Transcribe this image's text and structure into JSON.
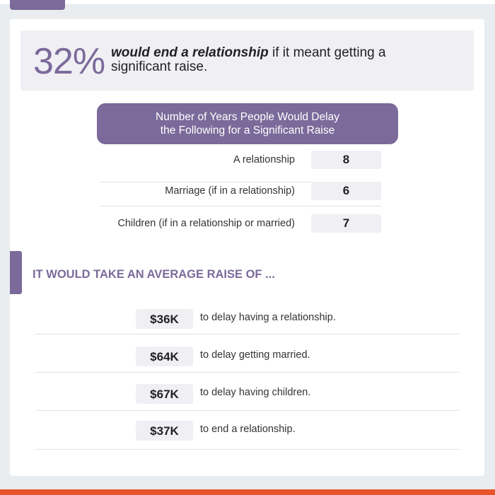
{
  "stat": {
    "percent": "32%",
    "bold_text": "would end a relationship",
    "rest_text": " if it meant getting a significant raise."
  },
  "years_table": {
    "title_line1": "Number of Years People Would Delay",
    "title_line2": "the Following for a Significant Raise",
    "rows": [
      {
        "label": "A relationship",
        "value": "8"
      },
      {
        "label": "Marriage (if in a relationship)",
        "value": "6"
      },
      {
        "label": "Children (if in a relationship or married)",
        "value": "7"
      }
    ]
  },
  "raise_section": {
    "heading": "IT WOULD TAKE AN AVERAGE RAISE OF ...",
    "rows": [
      {
        "amount": "$36K",
        "text": "to delay having a relationship."
      },
      {
        "amount": "$64K",
        "text": "to delay getting married."
      },
      {
        "amount": "$67K",
        "text": "to delay having children."
      },
      {
        "amount": "$37K",
        "text": "to end a relationship."
      }
    ]
  },
  "colors": {
    "accent": "#7b6a9a",
    "footer": "#e8542a",
    "background": "#e9edf0"
  }
}
